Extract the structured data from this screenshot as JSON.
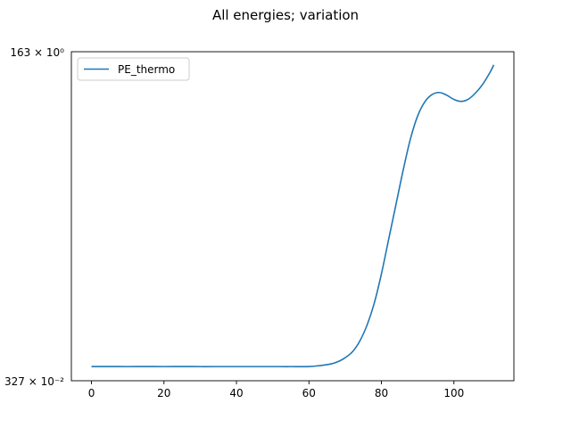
{
  "chart_data": {
    "type": "line",
    "title": "All energies; variation",
    "xlabel": "",
    "ylabel": "",
    "x_ticks": [
      0,
      20,
      40,
      60,
      80,
      100
    ],
    "xlim": [
      -5.55,
      116.55
    ],
    "y_scale": "log",
    "y_tick_labels": {
      "top": "163 × 10⁰",
      "bottom": "327 × 10⁻²"
    },
    "ylim_frac": [
      0,
      1
    ],
    "legend": {
      "location": "upper-left",
      "entries": [
        "PE_thermo"
      ]
    },
    "grid": false,
    "series": [
      {
        "name": "PE_thermo",
        "color": "#1f77b4",
        "x": [
          0,
          5,
          10,
          15,
          20,
          25,
          30,
          35,
          40,
          45,
          50,
          55,
          60,
          63,
          66,
          68,
          70,
          72,
          74,
          76,
          78,
          80,
          82,
          84,
          86,
          88,
          90,
          92,
          94,
          96,
          98,
          100,
          102,
          104,
          106,
          108,
          110,
          111
        ],
        "y_frac": [
          0.0432,
          0.0432,
          0.043,
          0.0432,
          0.043,
          0.0432,
          0.043,
          0.043,
          0.043,
          0.043,
          0.043,
          0.043,
          0.0432,
          0.046,
          0.051,
          0.058,
          0.07,
          0.088,
          0.12,
          0.168,
          0.235,
          0.325,
          0.43,
          0.535,
          0.64,
          0.735,
          0.805,
          0.848,
          0.87,
          0.876,
          0.868,
          0.855,
          0.849,
          0.856,
          0.875,
          0.902,
          0.938,
          0.96
        ]
      }
    ]
  }
}
